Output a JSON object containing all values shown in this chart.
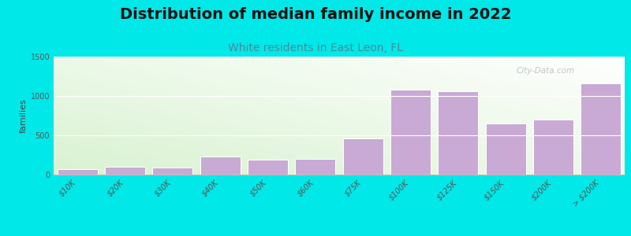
{
  "title": "Distribution of median family income in 2022",
  "subtitle": "White residents in East Leon, FL",
  "ylabel": "families",
  "categories": [
    "$10K",
    "$20K",
    "$30K",
    "$40K",
    "$50K",
    "$60K",
    "$75K",
    "$100K",
    "$125K",
    "$150K",
    "$200K",
    "> $200K"
  ],
  "values": [
    75,
    100,
    95,
    230,
    190,
    200,
    460,
    1080,
    1060,
    650,
    700,
    1160
  ],
  "bar_color": "#c8aad4",
  "background_outer": "#00e8e8",
  "ylim": [
    0,
    1500
  ],
  "yticks": [
    0,
    500,
    1000,
    1500
  ],
  "title_fontsize": 14,
  "subtitle_fontsize": 10,
  "subtitle_color": "#4a8a9a",
  "ylabel_fontsize": 8,
  "tick_fontsize": 7,
  "watermark": "City-Data.com"
}
